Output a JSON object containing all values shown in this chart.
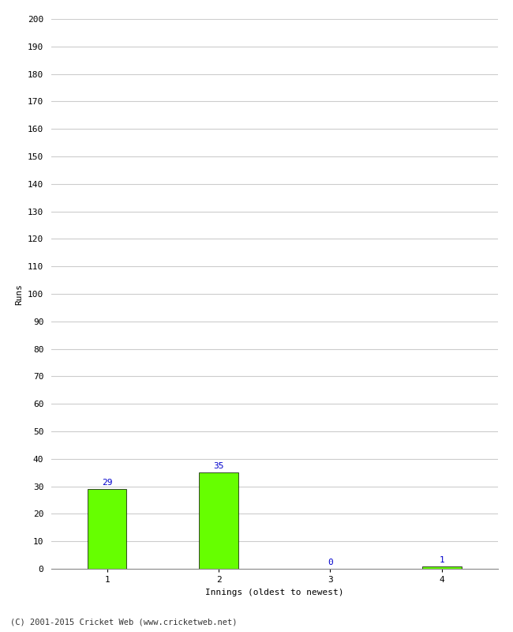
{
  "categories": [
    "1",
    "2",
    "3",
    "4"
  ],
  "values": [
    29,
    35,
    0,
    1
  ],
  "bar_color": "#66ff00",
  "bar_edge_color": "#000000",
  "value_labels": [
    "29",
    "35",
    "0",
    "1"
  ],
  "value_label_color": "#0000cc",
  "xlabel": "Innings (oldest to newest)",
  "ylabel": "Runs",
  "ylim": [
    0,
    200
  ],
  "yticks": [
    0,
    10,
    20,
    30,
    40,
    50,
    60,
    70,
    80,
    90,
    100,
    110,
    120,
    130,
    140,
    150,
    160,
    170,
    180,
    190,
    200
  ],
  "background_color": "#ffffff",
  "grid_color": "#cccccc",
  "footer": "(C) 2001-2015 Cricket Web (www.cricketweb.net)",
  "bar_width": 0.35
}
